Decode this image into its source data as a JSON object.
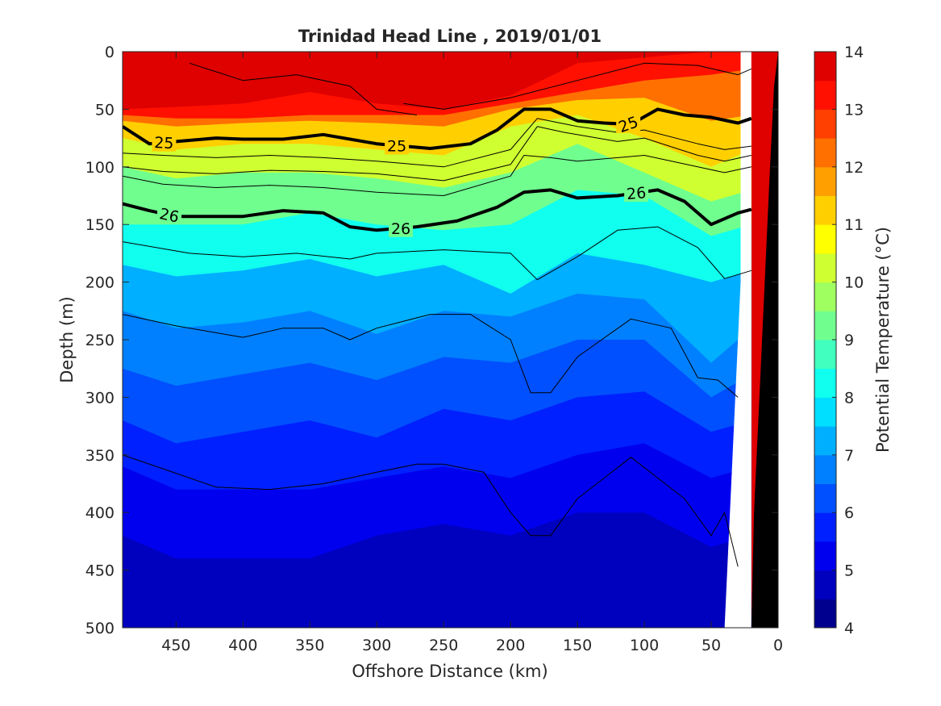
{
  "chart_data": {
    "type": "heatmap",
    "title": "Trinidad Head Line , 2019/01/01",
    "xlabel": "Offshore Distance (km)",
    "ylabel": "Depth (m)",
    "colorbar_label": "Potential Temperature (°C)",
    "xlim": [
      490,
      0
    ],
    "x_reversed": true,
    "ylim": [
      0,
      500
    ],
    "y_reversed": true,
    "x_ticks": [
      450,
      400,
      350,
      300,
      250,
      200,
      150,
      100,
      50,
      0
    ],
    "x_tick_labels": [
      "450",
      "400",
      "350",
      "300",
      "250",
      "200",
      "150",
      "100",
      "50",
      "0"
    ],
    "y_ticks": [
      0,
      50,
      100,
      150,
      200,
      250,
      300,
      350,
      400,
      450,
      500
    ],
    "y_tick_labels": [
      "0",
      "50",
      "100",
      "150",
      "200",
      "250",
      "300",
      "350",
      "400",
      "450",
      "500"
    ],
    "colorbar_ticks": [
      4,
      5,
      6,
      7,
      8,
      9,
      10,
      11,
      12,
      13,
      14
    ],
    "colorbar_tick_labels": [
      "4",
      "5",
      "6",
      "7",
      "8",
      "9",
      "10",
      "11",
      "12",
      "13",
      "14"
    ],
    "colorbar_range": [
      4,
      14
    ],
    "colormap": [
      "#00008f",
      "#0000bf",
      "#0000ef",
      "#0020ff",
      "#0050ff",
      "#0080ff",
      "#00afff",
      "#00dfff",
      "#10ffef",
      "#40ffbf",
      "#70ff8f",
      "#9fff60",
      "#cfff30",
      "#ffff00",
      "#ffcf00",
      "#ff9f00",
      "#ff7000",
      "#ff4000",
      "#ff1000",
      "#df0000",
      "#af0000"
    ],
    "contour_levels_in_0_5_steps": true,
    "temperature_isodepths": [
      {
        "temp": 14,
        "x": [
          490,
          450,
          400,
          350,
          300,
          250,
          200,
          150,
          100,
          50,
          20
        ],
        "depth": [
          50,
          48,
          45,
          35,
          45,
          50,
          38,
          10,
          5,
          0,
          0
        ]
      },
      {
        "temp": 13,
        "x": [
          490,
          450,
          400,
          350,
          300,
          250,
          200,
          150,
          100,
          50,
          20
        ],
        "depth": [
          55,
          58,
          58,
          55,
          55,
          55,
          45,
          35,
          25,
          20,
          15
        ]
      },
      {
        "temp": 12,
        "x": [
          490,
          450,
          400,
          350,
          300,
          250,
          200,
          150,
          100,
          50,
          20
        ],
        "depth": [
          60,
          65,
          62,
          60,
          62,
          65,
          50,
          42,
          40,
          60,
          55
        ]
      },
      {
        "temp": 11,
        "x": [
          490,
          450,
          400,
          350,
          300,
          250,
          200,
          150,
          100,
          50,
          20
        ],
        "depth": [
          75,
          85,
          80,
          80,
          85,
          90,
          65,
          55,
          75,
          100,
          85
        ]
      },
      {
        "temp": 10,
        "x": [
          490,
          450,
          400,
          350,
          300,
          250,
          200,
          150,
          100,
          50,
          20
        ],
        "depth": [
          100,
          110,
          105,
          105,
          110,
          118,
          105,
          80,
          105,
          130,
          120
        ]
      },
      {
        "temp": 9,
        "x": [
          490,
          450,
          400,
          350,
          300,
          250,
          200,
          150,
          100,
          50,
          20
        ],
        "depth": [
          150,
          150,
          150,
          140,
          150,
          155,
          150,
          120,
          125,
          160,
          150
        ]
      },
      {
        "temp": 8,
        "x": [
          490,
          450,
          400,
          350,
          300,
          250,
          200,
          150,
          100,
          50,
          20
        ],
        "depth": [
          185,
          195,
          190,
          180,
          195,
          185,
          210,
          175,
          185,
          200,
          190
        ]
      },
      {
        "temp": 7,
        "x": [
          490,
          450,
          400,
          350,
          300,
          250,
          200,
          150,
          100,
          50,
          20
        ],
        "depth": [
          225,
          240,
          235,
          225,
          245,
          225,
          230,
          210,
          215,
          270,
          240
        ]
      },
      {
        "temp": 6.5,
        "x": [
          490,
          450,
          400,
          350,
          300,
          250,
          200,
          150,
          100,
          50,
          20
        ],
        "depth": [
          275,
          290,
          280,
          270,
          285,
          265,
          270,
          250,
          250,
          300,
          280
        ]
      },
      {
        "temp": 6,
        "x": [
          490,
          450,
          400,
          350,
          300,
          250,
          200,
          150,
          100,
          50,
          20
        ],
        "depth": [
          320,
          340,
          330,
          320,
          335,
          310,
          320,
          300,
          295,
          330,
          320
        ]
      },
      {
        "temp": 5.5,
        "x": [
          490,
          450,
          400,
          350,
          300,
          250,
          200,
          150,
          100,
          50,
          20
        ],
        "depth": [
          360,
          380,
          380,
          380,
          370,
          360,
          370,
          350,
          340,
          370,
          360
        ]
      },
      {
        "temp": 5,
        "x": [
          490,
          450,
          400,
          350,
          300,
          250,
          200,
          150,
          100,
          50,
          20
        ],
        "depth": [
          420,
          440,
          440,
          440,
          420,
          410,
          420,
          400,
          400,
          430,
          420
        ]
      },
      {
        "temp": 4.5,
        "x": [
          490,
          450,
          400,
          350,
          300,
          250,
          200,
          150,
          100,
          50,
          20
        ],
        "depth": [
          500,
          500,
          500,
          500,
          500,
          500,
          500,
          500,
          500,
          500,
          500
        ]
      }
    ],
    "density_contours": [
      {
        "label": "25",
        "bold": true,
        "x": [
          490,
          470,
          450,
          420,
          400,
          370,
          340,
          300,
          280,
          260,
          230,
          210,
          190,
          170,
          150,
          130,
          110,
          90,
          70,
          50,
          30,
          20
        ],
        "depth": [
          65,
          80,
          78,
          75,
          76,
          76,
          72,
          80,
          82,
          84,
          80,
          68,
          50,
          50,
          60,
          62,
          63,
          50,
          55,
          57,
          62,
          58
        ]
      },
      {
        "label": "26",
        "bold": true,
        "x": [
          490,
          470,
          450,
          420,
          400,
          370,
          340,
          320,
          300,
          270,
          240,
          210,
          190,
          170,
          150,
          120,
          90,
          70,
          50,
          30,
          20
        ],
        "depth": [
          132,
          138,
          143,
          143,
          143,
          138,
          140,
          152,
          155,
          152,
          147,
          135,
          122,
          120,
          127,
          125,
          120,
          130,
          150,
          140,
          137
        ]
      },
      {
        "label": "",
        "bold": false,
        "x": [
          490,
          460,
          420,
          380,
          340,
          300,
          250,
          200,
          190,
          170,
          150,
          100,
          60,
          40,
          20
        ],
        "depth": [
          108,
          115,
          118,
          116,
          118,
          122,
          125,
          108,
          90,
          92,
          95,
          90,
          100,
          105,
          100
        ]
      },
      {
        "label": "",
        "bold": false,
        "x": [
          490,
          460,
          420,
          380,
          340,
          300,
          250,
          200,
          180,
          160,
          120,
          100,
          60,
          40,
          20
        ],
        "depth": [
          100,
          104,
          106,
          103,
          104,
          106,
          112,
          98,
          65,
          70,
          78,
          75,
          90,
          95,
          90
        ]
      },
      {
        "label": "",
        "bold": false,
        "x": [
          490,
          460,
          420,
          380,
          340,
          300,
          250,
          200,
          180,
          150,
          120,
          100,
          60,
          40,
          20
        ],
        "depth": [
          88,
          90,
          92,
          90,
          92,
          95,
          100,
          85,
          58,
          65,
          70,
          68,
          80,
          85,
          82
        ]
      },
      {
        "label": "",
        "bold": false,
        "x": [
          490,
          440,
          400,
          360,
          320,
          300,
          250,
          200,
          180,
          150,
          120,
          90,
          60,
          40,
          20
        ],
        "depth": [
          165,
          175,
          178,
          175,
          180,
          175,
          172,
          175,
          198,
          178,
          155,
          152,
          170,
          197,
          190
        ]
      },
      {
        "label": "",
        "bold": false,
        "x": [
          490,
          450,
          400,
          370,
          340,
          320,
          300,
          260,
          230,
          200,
          185,
          170,
          150,
          110,
          80,
          60,
          45,
          30
        ],
        "depth": [
          228,
          238,
          248,
          240,
          240,
          250,
          240,
          228,
          228,
          250,
          296,
          296,
          265,
          232,
          240,
          283,
          285,
          300
        ]
      },
      {
        "label": "",
        "bold": false,
        "x": [
          490,
          460,
          420,
          380,
          340,
          300,
          270,
          250,
          220,
          200,
          185,
          170,
          150,
          110,
          90,
          70,
          50,
          40,
          30
        ],
        "depth": [
          350,
          362,
          378,
          380,
          375,
          365,
          358,
          358,
          365,
          400,
          420,
          420,
          388,
          352,
          370,
          388,
          420,
          400,
          447
        ]
      },
      {
        "label": "",
        "bold": false,
        "x": [
          440,
          400,
          360,
          320,
          300,
          270
        ],
        "depth": [
          10,
          25,
          20,
          30,
          50,
          55
        ]
      },
      {
        "label": "",
        "bold": false,
        "x": [
          280,
          250,
          200,
          150,
          100,
          60,
          30,
          20
        ],
        "depth": [
          45,
          50,
          40,
          25,
          10,
          12,
          20,
          15
        ]
      }
    ],
    "bathymetry": {
      "x": [
        20,
        18,
        14,
        10,
        8,
        6,
        3,
        0
      ],
      "depth": [
        500,
        400,
        300,
        200,
        150,
        100,
        30,
        0
      ],
      "color": "#000000"
    },
    "mask_regions": [
      {
        "x": [
          28,
          20,
          20,
          28
        ],
        "depth": [
          0,
          0,
          180,
          200
        ]
      },
      {
        "x": [
          28,
          20,
          20,
          40
        ],
        "depth": [
          200,
          180,
          500,
          500
        ]
      }
    ]
  }
}
